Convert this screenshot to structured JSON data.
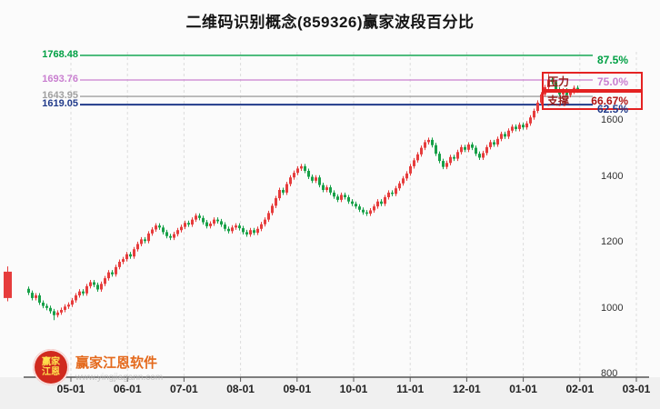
{
  "title": "二维码识别概念(859326)赢家波段百分比",
  "overlay": {
    "resistance_label": "压力",
    "support_label": "支撑",
    "box_border_color": "#e42222"
  },
  "watermark": {
    "logo_line1": "赢家",
    "logo_line2": "江恩",
    "name": "赢家江恩软件",
    "url": "www.yingjiagann.com"
  },
  "chart_data": {
    "type": "candlestick",
    "title": "二维码识别概念(859326)赢家波段百分比",
    "xlabel": "",
    "ylabel": "",
    "x_ticks": [
      "05-01",
      "06-01",
      "07-01",
      "08-01",
      "09-01",
      "10-01",
      "11-01",
      "12-01",
      "01-01",
      "02-01",
      "03-01"
    ],
    "y_ticks": [
      1600,
      1400,
      1200,
      1000,
      800
    ],
    "ylim": [
      800,
      1779
    ],
    "grid": "vertical-dashed",
    "up_color": "#e63c3c",
    "down_color": "#17a048",
    "levels": [
      {
        "price": "1768.48",
        "value": 1768.48,
        "pct": "87.5%",
        "color": "#00a044",
        "pct_color": "#00a044"
      },
      {
        "price": "1693.76",
        "value": 1693.76,
        "pct": "75.0%",
        "color": "#c97fd0",
        "pct_color": "#c97fd0"
      },
      {
        "price": "1643.95",
        "value": 1643.95,
        "pct": "66.67%",
        "color": "#a0a0a0",
        "pct_color": "#b01212"
      },
      {
        "price": "1619.05",
        "value": 1619.05,
        "pct": "62.5%",
        "color": "#203a8a",
        "pct_color": "#203a8a"
      }
    ],
    "edge_candle": [
      1032,
      1128,
      1022,
      1112
    ],
    "candles": [
      [
        1060,
        1067,
        1041,
        1048
      ],
      [
        1048,
        1055,
        1025,
        1032
      ],
      [
        1032,
        1047,
        1025,
        1040
      ],
      [
        1040,
        1047,
        1011,
        1018
      ],
      [
        1018,
        1025,
        1001,
        1008
      ],
      [
        1008,
        1015,
        995,
        1002
      ],
      [
        1002,
        1009,
        985,
        992
      ],
      [
        992,
        999,
        965,
        980
      ],
      [
        980,
        995,
        973,
        988
      ],
      [
        988,
        1003,
        981,
        996
      ],
      [
        996,
        1013,
        989,
        1006
      ],
      [
        1006,
        1019,
        999,
        1012
      ],
      [
        1012,
        1032,
        1005,
        1025
      ],
      [
        1025,
        1047,
        1018,
        1040
      ],
      [
        1040,
        1059,
        1033,
        1052
      ],
      [
        1052,
        1059,
        1039,
        1046
      ],
      [
        1046,
        1075,
        1039,
        1068
      ],
      [
        1068,
        1087,
        1061,
        1080
      ],
      [
        1080,
        1087,
        1065,
        1072
      ],
      [
        1072,
        1079,
        1051,
        1058
      ],
      [
        1058,
        1082,
        1051,
        1075
      ],
      [
        1075,
        1099,
        1068,
        1092
      ],
      [
        1092,
        1117,
        1085,
        1110
      ],
      [
        1110,
        1117,
        1097,
        1104
      ],
      [
        1104,
        1133,
        1097,
        1126
      ],
      [
        1126,
        1149,
        1119,
        1142
      ],
      [
        1142,
        1157,
        1135,
        1150
      ],
      [
        1150,
        1172,
        1143,
        1165
      ],
      [
        1165,
        1172,
        1151,
        1158
      ],
      [
        1158,
        1187,
        1151,
        1180
      ],
      [
        1180,
        1203,
        1173,
        1196
      ],
      [
        1196,
        1217,
        1189,
        1210
      ],
      [
        1210,
        1217,
        1198,
        1205
      ],
      [
        1205,
        1235,
        1198,
        1228
      ],
      [
        1228,
        1247,
        1221,
        1240
      ],
      [
        1240,
        1259,
        1233,
        1252
      ],
      [
        1252,
        1259,
        1239,
        1246
      ],
      [
        1246,
        1253,
        1225,
        1232
      ],
      [
        1232,
        1239,
        1213,
        1220
      ],
      [
        1220,
        1227,
        1208,
        1215
      ],
      [
        1215,
        1233,
        1208,
        1226
      ],
      [
        1226,
        1245,
        1219,
        1238
      ],
      [
        1238,
        1255,
        1231,
        1248
      ],
      [
        1248,
        1267,
        1241,
        1260
      ],
      [
        1260,
        1267,
        1248,
        1255
      ],
      [
        1255,
        1277,
        1248,
        1270
      ],
      [
        1270,
        1289,
        1263,
        1282
      ],
      [
        1282,
        1289,
        1268,
        1275
      ],
      [
        1275,
        1282,
        1255,
        1262
      ],
      [
        1262,
        1269,
        1243,
        1250
      ],
      [
        1250,
        1265,
        1243,
        1258
      ],
      [
        1258,
        1277,
        1251,
        1270
      ],
      [
        1270,
        1277,
        1258,
        1265
      ],
      [
        1265,
        1272,
        1248,
        1255
      ],
      [
        1255,
        1262,
        1235,
        1242
      ],
      [
        1242,
        1249,
        1228,
        1235
      ],
      [
        1235,
        1253,
        1228,
        1246
      ],
      [
        1246,
        1259,
        1239,
        1252
      ],
      [
        1252,
        1259,
        1237,
        1244
      ],
      [
        1244,
        1251,
        1225,
        1232
      ],
      [
        1232,
        1239,
        1218,
        1225
      ],
      [
        1225,
        1245,
        1218,
        1238
      ],
      [
        1238,
        1245,
        1223,
        1230
      ],
      [
        1230,
        1249,
        1223,
        1242
      ],
      [
        1242,
        1263,
        1235,
        1256
      ],
      [
        1256,
        1277,
        1249,
        1270
      ],
      [
        1270,
        1297,
        1263,
        1290
      ],
      [
        1290,
        1319,
        1283,
        1312
      ],
      [
        1312,
        1342,
        1305,
        1335
      ],
      [
        1335,
        1367,
        1328,
        1360
      ],
      [
        1360,
        1367,
        1345,
        1352
      ],
      [
        1352,
        1385,
        1345,
        1378
      ],
      [
        1378,
        1405,
        1371,
        1398
      ],
      [
        1398,
        1419,
        1391,
        1412
      ],
      [
        1412,
        1432,
        1405,
        1425
      ],
      [
        1425,
        1439,
        1418,
        1432
      ],
      [
        1432,
        1439,
        1411,
        1418
      ],
      [
        1418,
        1425,
        1393,
        1400
      ],
      [
        1400,
        1407,
        1381,
        1388
      ],
      [
        1388,
        1405,
        1381,
        1398
      ],
      [
        1398,
        1405,
        1368,
        1375
      ],
      [
        1375,
        1382,
        1353,
        1360
      ],
      [
        1360,
        1375,
        1353,
        1368
      ],
      [
        1368,
        1375,
        1345,
        1352
      ],
      [
        1352,
        1359,
        1333,
        1340
      ],
      [
        1340,
        1347,
        1323,
        1330
      ],
      [
        1330,
        1352,
        1323,
        1345
      ],
      [
        1345,
        1352,
        1331,
        1338
      ],
      [
        1338,
        1345,
        1318,
        1325
      ],
      [
        1325,
        1332,
        1311,
        1318
      ],
      [
        1318,
        1325,
        1303,
        1310
      ],
      [
        1310,
        1317,
        1293,
        1300
      ],
      [
        1300,
        1307,
        1285,
        1292
      ],
      [
        1292,
        1299,
        1281,
        1288
      ],
      [
        1288,
        1305,
        1281,
        1298
      ],
      [
        1298,
        1317,
        1291,
        1310
      ],
      [
        1310,
        1332,
        1303,
        1325
      ],
      [
        1325,
        1332,
        1311,
        1318
      ],
      [
        1318,
        1345,
        1311,
        1338
      ],
      [
        1338,
        1359,
        1331,
        1352
      ],
      [
        1352,
        1359,
        1341,
        1348
      ],
      [
        1348,
        1372,
        1341,
        1365
      ],
      [
        1365,
        1387,
        1358,
        1380
      ],
      [
        1380,
        1402,
        1373,
        1395
      ],
      [
        1395,
        1417,
        1388,
        1410
      ],
      [
        1410,
        1439,
        1403,
        1432
      ],
      [
        1432,
        1457,
        1425,
        1450
      ],
      [
        1450,
        1475,
        1443,
        1468
      ],
      [
        1468,
        1495,
        1461,
        1488
      ],
      [
        1488,
        1512,
        1481,
        1505
      ],
      [
        1505,
        1519,
        1498,
        1512
      ],
      [
        1512,
        1519,
        1489,
        1496
      ],
      [
        1496,
        1503,
        1463,
        1470
      ],
      [
        1470,
        1477,
        1441,
        1448
      ],
      [
        1448,
        1455,
        1423,
        1430
      ],
      [
        1430,
        1449,
        1423,
        1442
      ],
      [
        1442,
        1467,
        1435,
        1460
      ],
      [
        1460,
        1467,
        1448,
        1455
      ],
      [
        1455,
        1482,
        1448,
        1475
      ],
      [
        1475,
        1497,
        1468,
        1490
      ],
      [
        1490,
        1497,
        1475,
        1482
      ],
      [
        1482,
        1505,
        1475,
        1498
      ],
      [
        1498,
        1505,
        1481,
        1488
      ],
      [
        1488,
        1495,
        1463,
        1470
      ],
      [
        1470,
        1477,
        1451,
        1458
      ],
      [
        1458,
        1479,
        1451,
        1472
      ],
      [
        1472,
        1497,
        1465,
        1490
      ],
      [
        1490,
        1512,
        1483,
        1505
      ],
      [
        1505,
        1512,
        1491,
        1498
      ],
      [
        1498,
        1522,
        1491,
        1515
      ],
      [
        1515,
        1537,
        1508,
        1530
      ],
      [
        1530,
        1537,
        1515,
        1522
      ],
      [
        1522,
        1547,
        1515,
        1540
      ],
      [
        1540,
        1559,
        1533,
        1552
      ],
      [
        1552,
        1559,
        1538,
        1545
      ],
      [
        1545,
        1565,
        1538,
        1558
      ],
      [
        1558,
        1565,
        1543,
        1550
      ],
      [
        1550,
        1569,
        1543,
        1562
      ],
      [
        1562,
        1587,
        1555,
        1580
      ],
      [
        1580,
        1607,
        1573,
        1600
      ],
      [
        1600,
        1632,
        1593,
        1625
      ],
      [
        1625,
        1657,
        1618,
        1650
      ],
      [
        1650,
        1679,
        1643,
        1672
      ],
      [
        1672,
        1712,
        1665,
        1695
      ],
      [
        1695,
        1702,
        1681,
        1688
      ],
      [
        1688,
        1695,
        1658,
        1665
      ],
      [
        1665,
        1672,
        1643,
        1650
      ],
      [
        1650,
        1669,
        1643,
        1662
      ],
      [
        1662,
        1669,
        1641,
        1648
      ],
      [
        1648,
        1665,
        1641,
        1658
      ],
      [
        1658,
        1677,
        1651,
        1670
      ],
      [
        1670,
        1677,
        1655,
        1662
      ]
    ]
  }
}
